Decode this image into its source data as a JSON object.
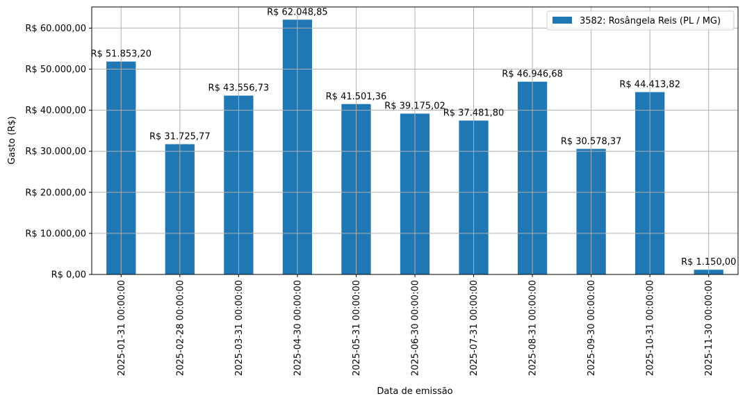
{
  "chart_data": {
    "type": "bar",
    "title": "",
    "xlabel": "Data de emissão",
    "ylabel": "Gasto (R$)",
    "ylim": [
      0,
      65150
    ],
    "grid": true,
    "legend_position": "upper right",
    "categories": [
      "2025-01-31 00:00:00",
      "2025-02-28 00:00:00",
      "2025-03-31 00:00:00",
      "2025-04-30 00:00:00",
      "2025-05-31 00:00:00",
      "2025-06-30 00:00:00",
      "2025-07-31 00:00:00",
      "2025-08-31 00:00:00",
      "2025-09-30 00:00:00",
      "2025-10-31 00:00:00",
      "2025-11-30 00:00:00"
    ],
    "series": [
      {
        "name": "3582: Rosângela Reis (PL / MG)",
        "color": "#1f77b4",
        "values": [
          51853.2,
          31725.77,
          43556.73,
          62048.85,
          41501.36,
          39175.02,
          37481.8,
          46946.68,
          30578.37,
          44413.82,
          1150.0
        ],
        "labels": [
          "R$ 51.853,20",
          "R$ 31.725,77",
          "R$ 43.556,73",
          "R$ 62.048,85",
          "R$ 41.501,36",
          "R$ 39.175,02",
          "R$ 37.481,80",
          "R$ 46.946,68",
          "R$ 30.578,37",
          "R$ 44.413,82",
          "R$ 1.150,00"
        ]
      }
    ],
    "yticks": [
      0,
      10000,
      20000,
      30000,
      40000,
      50000,
      60000
    ],
    "ytick_labels": [
      "R$ 0,00",
      "R$ 10.000,00",
      "R$ 20.000,00",
      "R$ 30.000,00",
      "R$ 40.000,00",
      "R$ 50.000,00",
      "R$ 60.000,00"
    ]
  },
  "colors": {
    "bar": "#1f77b4",
    "grid": "#b0b0b0",
    "axis": "#000000",
    "legend_border": "#cccccc"
  }
}
